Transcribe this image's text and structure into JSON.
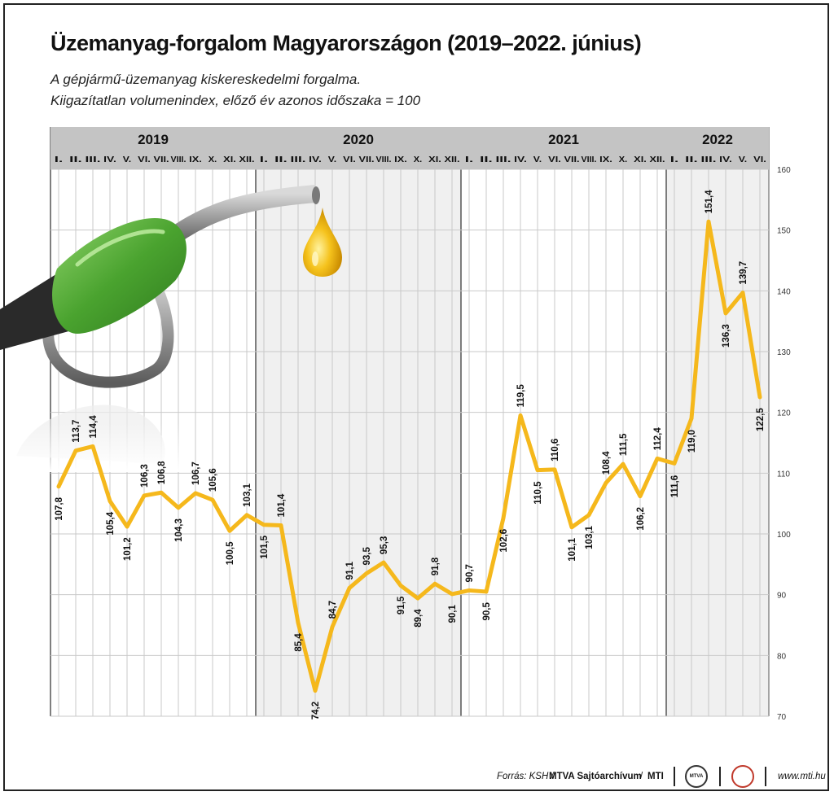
{
  "title": "Üzemanyag-forgalom Magyarországon (2019–2022. június)",
  "subtitle_line1": "A gépjármű-üzemanyag kiskereskedelmi forgalma.",
  "subtitle_line2": "Kiigazítatlan volumenindex, előző év azonos időszaka = 100",
  "footer": {
    "source": "Forrás: KSH /",
    "archive": "MTVA Sajtóarchívum",
    "slash": "/",
    "mti": "MTI",
    "url": "www.mti.hu",
    "logo_text": "MTVA"
  },
  "colors": {
    "line": "#f5b81c",
    "band_dark": "#c4c4c4",
    "band_light": "#f0f0f0",
    "grid": "#c9c9c9",
    "divider": "#555555",
    "nozzle_green": "#5ab33c",
    "drop": "#f1b712"
  },
  "chart_data": {
    "type": "line",
    "years": [
      {
        "label": "2019",
        "months": [
          "I.",
          "II.",
          "III.",
          "IV.",
          "V.",
          "VI.",
          "VII.",
          "VIII.",
          "IX.",
          "X.",
          "XI.",
          "XII."
        ]
      },
      {
        "label": "2020",
        "months": [
          "I.",
          "II.",
          "III.",
          "IV.",
          "V.",
          "VI.",
          "VII.",
          "VIII.",
          "IX.",
          "X.",
          "XI.",
          "XII."
        ]
      },
      {
        "label": "2021",
        "months": [
          "I.",
          "II.",
          "III.",
          "IV.",
          "V.",
          "VI.",
          "VII.",
          "VIII.",
          "IX.",
          "X.",
          "XI.",
          "XII."
        ]
      },
      {
        "label": "2022",
        "months": [
          "I.",
          "II.",
          "III.",
          "IV.",
          "V.",
          "VI."
        ]
      }
    ],
    "values": [
      107.8,
      113.7,
      114.4,
      105.4,
      101.2,
      106.3,
      106.8,
      104.3,
      106.7,
      105.6,
      100.5,
      103.1,
      101.5,
      101.4,
      85.4,
      74.2,
      84.7,
      91.1,
      93.5,
      95.3,
      91.5,
      89.4,
      91.8,
      90.1,
      90.7,
      90.5,
      102.6,
      119.5,
      110.5,
      110.6,
      101.1,
      103.1,
      108.4,
      111.5,
      106.2,
      112.4,
      111.6,
      119.0,
      151.4,
      136.3,
      139.7,
      122.5
    ],
    "labels": [
      "107,8",
      "113,7",
      "114,4",
      "105,4",
      "101,2",
      "106,3",
      "106,8",
      "104,3",
      "106,7",
      "105,6",
      "100,5",
      "103,1",
      "101,5",
      "101,4",
      "85,4",
      "74,2",
      "84,7",
      "91,1",
      "93,5",
      "95,3",
      "91,5",
      "89,4",
      "91,8",
      "90,1",
      "90,7",
      "90,5",
      "102,6",
      "119,5",
      "110,5",
      "110,6",
      "101,1",
      "103,1",
      "108,4",
      "111,5",
      "106,2",
      "112,4",
      "111,6",
      "119,0",
      "151,4",
      "136,3",
      "139,7",
      "122,5"
    ],
    "ylim": [
      70,
      160
    ],
    "yticks": [
      70,
      80,
      90,
      100,
      110,
      120,
      130,
      140,
      150,
      160
    ],
    "grid": true
  }
}
